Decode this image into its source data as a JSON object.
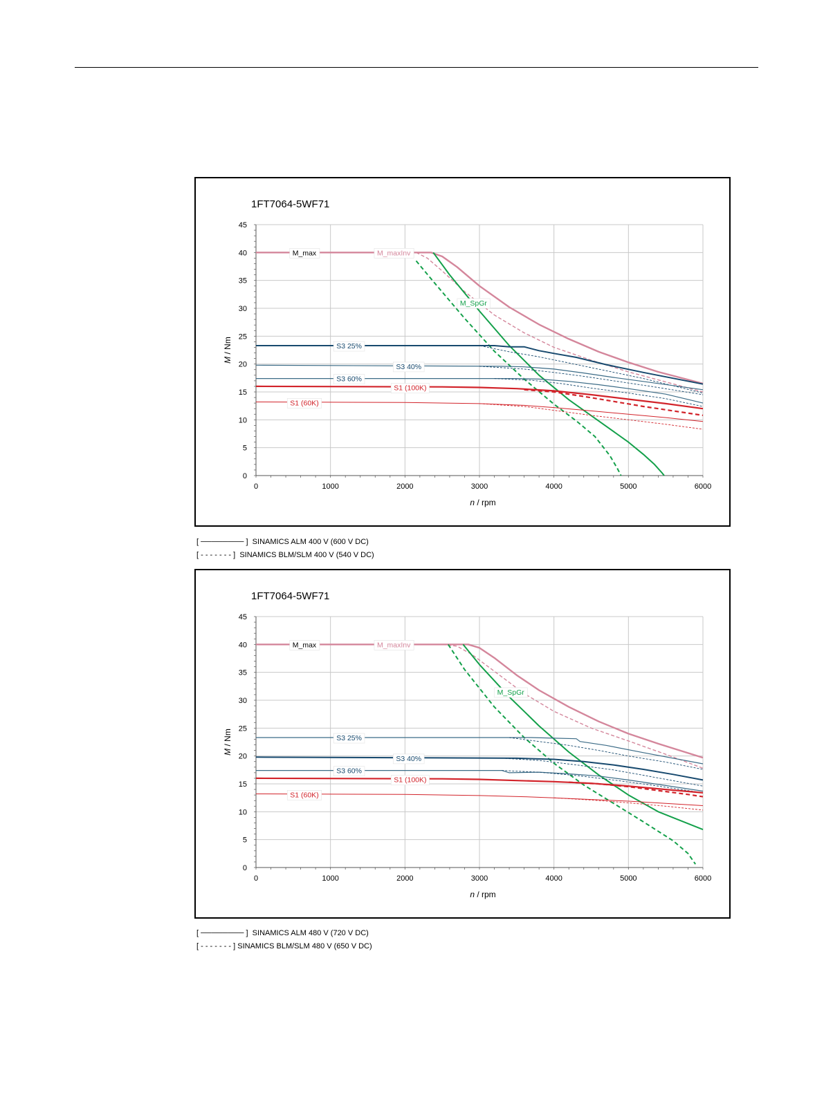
{
  "chart_data": [
    {
      "type": "line",
      "title": "1FT7064-5WF71",
      "xlabel_var": "n",
      "xlabel_unit": " / rpm",
      "ylabel_var": "M",
      "ylabel_unit": " / Nm",
      "xlim": [
        0,
        6000
      ],
      "ylim": [
        0,
        45
      ],
      "xticks": [
        "0",
        "1000",
        "2000",
        "3000",
        "4000",
        "5000",
        "6000"
      ],
      "yticks": [
        "0",
        "5",
        "10",
        "15",
        "20",
        "25",
        "30",
        "35",
        "40",
        "45"
      ],
      "grid": true,
      "colors": {
        "max": "#d4869b",
        "spgr": "#13a04a",
        "s3": "#17496e",
        "s3light": "#3b6b86",
        "s1": "#d2232a"
      },
      "labels": [
        {
          "text": "M_max",
          "x": 650,
          "y": 40,
          "color": "#000000"
        },
        {
          "text": "M_maxInv",
          "x": 1850,
          "y": 40,
          "color": "#d4869b"
        },
        {
          "text": "M_SpGr",
          "x": 2920,
          "y": 31,
          "color": "#13a04a"
        },
        {
          "text": "S3 25%",
          "x": 1250,
          "y": 23.3,
          "color": "#17496e"
        },
        {
          "text": "S3 40%",
          "x": 2050,
          "y": 19.6,
          "color": "#17496e"
        },
        {
          "text": "S3 60%",
          "x": 1250,
          "y": 17.4,
          "color": "#17496e"
        },
        {
          "text": "S1 (100K)",
          "x": 2070,
          "y": 15.8,
          "color": "#d2232a"
        },
        {
          "text": "S1 (60K)",
          "x": 650,
          "y": 13.1,
          "color": "#d2232a"
        }
      ],
      "series": [
        {
          "name": "M_max",
          "style": "max",
          "x": [
            0,
            2200,
            2350,
            2500,
            2700,
            3000,
            3400,
            3800,
            4200,
            4600,
            5000,
            5400,
            6000
          ],
          "y": [
            40,
            40,
            40,
            39.3,
            37.4,
            34,
            30.2,
            27.1,
            24.5,
            22.2,
            20.3,
            18.6,
            16.5
          ]
        },
        {
          "name": "M_max BLM",
          "style": "max-dash",
          "x": [
            2150,
            2300,
            2500,
            2800,
            3200,
            3600,
            4000,
            4500,
            5000,
            5500,
            6000
          ],
          "y": [
            40,
            39,
            36.7,
            33,
            28.8,
            25.6,
            23,
            20.7,
            18.6,
            16.8,
            15
          ]
        },
        {
          "name": "M_SpGr",
          "style": "spgr",
          "x": [
            2380,
            2600,
            3000,
            3400,
            3800,
            4200,
            4600,
            5000,
            5200,
            5350,
            5450,
            5480
          ],
          "y": [
            40,
            36,
            29.5,
            23.3,
            18,
            13.6,
            9.8,
            6,
            3.8,
            2,
            0.5,
            0
          ]
        },
        {
          "name": "M_SpGr BLM",
          "style": "spgr-dash",
          "x": [
            2150,
            2400,
            2800,
            3200,
            3600,
            4000,
            4300,
            4550,
            4750,
            4850,
            4900
          ],
          "y": [
            38.5,
            34.5,
            28.2,
            22.3,
            17.3,
            12.8,
            9.8,
            7,
            3.6,
            1.3,
            0
          ]
        },
        {
          "name": "S3 25%",
          "style": "s3-thick",
          "x": [
            0,
            3200,
            3400,
            3600,
            3800,
            4000,
            4300,
            4700,
            5200,
            6000
          ],
          "y": [
            23.3,
            23.3,
            23.1,
            23.1,
            22.4,
            21.9,
            21.2,
            19.9,
            18.5,
            16.4
          ]
        },
        {
          "name": "S3 25% BLM",
          "style": "s3-dash",
          "x": [
            2500,
            3000,
            3400,
            3800,
            4200,
            4700,
            5200,
            6000
          ],
          "y": [
            23.3,
            23.3,
            22.2,
            21.3,
            20.2,
            18.8,
            17.4,
            14.8
          ]
        },
        {
          "name": "S3 40%",
          "style": "s3",
          "x": [
            0,
            3300,
            3600,
            4000,
            4400,
            4800,
            5300,
            6000
          ],
          "y": [
            19.8,
            19.6,
            19.5,
            19.1,
            18.4,
            17.6,
            16.7,
            15.4
          ]
        },
        {
          "name": "S3 40% BLM",
          "style": "s3-dash",
          "x": [
            3000,
            3600,
            4000,
            4400,
            4800,
            5300,
            6000
          ],
          "y": [
            19.6,
            19.1,
            18.5,
            17.8,
            17,
            16,
            14.5
          ]
        },
        {
          "name": "S3 60%",
          "style": "s3",
          "x": [
            0,
            3500,
            3800,
            4200,
            4600,
            5000,
            5500,
            6000
          ],
          "y": [
            17.4,
            17.4,
            17.3,
            16.9,
            16.3,
            15.6,
            14.6,
            13
          ]
        },
        {
          "name": "S3 60% BLM",
          "style": "s3-dash",
          "x": [
            3200,
            3700,
            4100,
            4500,
            5000,
            5500,
            6000
          ],
          "y": [
            17.4,
            17.1,
            16.5,
            15.7,
            14.8,
            13.8,
            12.4
          ]
        },
        {
          "name": "S1 (100K)",
          "style": "s1-thick",
          "x": [
            0,
            2500,
            3000,
            3500,
            4000,
            4500,
            5000,
            5500,
            6000
          ],
          "y": [
            16,
            15.9,
            15.8,
            15.6,
            15.2,
            14.5,
            13.7,
            12.9,
            12
          ]
        },
        {
          "name": "S1 (100K) BLM",
          "style": "s1-dash-thick",
          "x": [
            3600,
            4000,
            4400,
            4800,
            5200,
            5600,
            6000
          ],
          "y": [
            15.4,
            15,
            14.2,
            13.3,
            12.4,
            11.6,
            10.8
          ]
        },
        {
          "name": "S1 (60K)",
          "style": "s1",
          "x": [
            0,
            2000,
            3000,
            3600,
            4000,
            4500,
            5000,
            5500,
            6000
          ],
          "y": [
            13.2,
            13.1,
            12.9,
            12.6,
            12.2,
            11.6,
            11,
            10.4,
            9.7
          ]
        },
        {
          "name": "S1 (60K) BLM",
          "style": "s1-dash",
          "x": [
            3000,
            3600,
            4000,
            4500,
            5000,
            5500,
            6000
          ],
          "y": [
            12.9,
            12.4,
            11.7,
            10.8,
            10,
            9.2,
            8.3
          ]
        }
      ]
    },
    {
      "type": "line",
      "title": "1FT7064-5WF71",
      "xlabel_var": "n",
      "xlabel_unit": " / rpm",
      "ylabel_var": "M",
      "ylabel_unit": " / Nm",
      "xlim": [
        0,
        6000
      ],
      "ylim": [
        0,
        45
      ],
      "xticks": [
        "0",
        "1000",
        "2000",
        "3000",
        "4000",
        "5000",
        "6000"
      ],
      "yticks": [
        "0",
        "5",
        "10",
        "15",
        "20",
        "25",
        "30",
        "35",
        "40",
        "45"
      ],
      "grid": true,
      "colors": {
        "max": "#d4869b",
        "spgr": "#13a04a",
        "s3": "#17496e",
        "s3light": "#3b6b86",
        "s1": "#d2232a"
      },
      "labels": [
        {
          "text": "M_max",
          "x": 650,
          "y": 40,
          "color": "#000000"
        },
        {
          "text": "M_maxInv",
          "x": 1850,
          "y": 40,
          "color": "#d4869b"
        },
        {
          "text": "M_SpGr",
          "x": 3420,
          "y": 31.5,
          "color": "#13a04a"
        },
        {
          "text": "S3 25%",
          "x": 1250,
          "y": 23.3,
          "color": "#17496e"
        },
        {
          "text": "S3 40%",
          "x": 2050,
          "y": 19.6,
          "color": "#17496e"
        },
        {
          "text": "S3 60%",
          "x": 1250,
          "y": 17.4,
          "color": "#17496e"
        },
        {
          "text": "S1 (100K)",
          "x": 2070,
          "y": 15.8,
          "color": "#d2232a"
        },
        {
          "text": "S1 (60K)",
          "x": 650,
          "y": 13.1,
          "color": "#d2232a"
        }
      ],
      "series": [
        {
          "name": "M_max",
          "style": "max",
          "x": [
            0,
            2700,
            2850,
            3000,
            3200,
            3500,
            3800,
            4200,
            4600,
            5000,
            5400,
            6000
          ],
          "y": [
            40,
            40,
            40,
            39.4,
            37.6,
            34.5,
            31.8,
            28.8,
            26.2,
            24,
            22.2,
            19.7
          ]
        },
        {
          "name": "M_max BLM",
          "style": "max-dash",
          "x": [
            2500,
            2700,
            2900,
            3200,
            3600,
            4000,
            4500,
            5000,
            5500,
            6000
          ],
          "y": [
            40,
            39.7,
            38.2,
            35.2,
            31.2,
            28,
            25,
            22.7,
            20.3,
            17.8
          ]
        },
        {
          "name": "M_SpGr",
          "style": "spgr",
          "x": [
            2780,
            3000,
            3400,
            3800,
            4200,
            4600,
            5000,
            5400,
            5700,
            6000
          ],
          "y": [
            40,
            36.4,
            30.6,
            25.4,
            20.7,
            16.6,
            13,
            10,
            8.4,
            6.8
          ]
        },
        {
          "name": "M_SpGr BLM",
          "style": "spgr-dash",
          "x": [
            2580,
            2800,
            3200,
            3600,
            4000,
            4400,
            4800,
            5200,
            5600,
            5800,
            5900
          ],
          "y": [
            40,
            35.5,
            28.8,
            23.3,
            18.7,
            14.8,
            11.5,
            8.2,
            4.8,
            2.5,
            0.6
          ]
        },
        {
          "name": "S3 25%",
          "style": "s3",
          "x": [
            0,
            3700,
            4000,
            4300,
            4350,
            4700,
            5200,
            6000
          ],
          "y": [
            23.3,
            23.3,
            23.2,
            23.1,
            22.6,
            21.9,
            20.6,
            18.6
          ]
        },
        {
          "name": "S3 25% BLM",
          "style": "s3-dash",
          "x": [
            3400,
            3800,
            4200,
            4600,
            5000,
            5500,
            6000
          ],
          "y": [
            23.3,
            22.6,
            21.9,
            21,
            20,
            18.9,
            17.6
          ]
        },
        {
          "name": "S3 40%",
          "style": "s3-thick",
          "x": [
            0,
            3500,
            4000,
            4400,
            4800,
            5200,
            5600,
            6000
          ],
          "y": [
            19.8,
            19.6,
            19.4,
            19,
            18.4,
            17.6,
            16.7,
            15.7
          ]
        },
        {
          "name": "S3 40% BLM",
          "style": "s3-dash",
          "x": [
            3300,
            3800,
            4300,
            4800,
            5300,
            6000
          ],
          "y": [
            19.6,
            19.2,
            18.4,
            17.5,
            16.3,
            14.6
          ]
        },
        {
          "name": "S3 60%",
          "style": "s3",
          "x": [
            0,
            3300,
            3400,
            3800,
            4200,
            4600,
            5000,
            5500,
            6000
          ],
          "y": [
            17.4,
            17.4,
            17,
            17.1,
            16.8,
            16.4,
            15.7,
            14.7,
            13.7
          ]
        },
        {
          "name": "S3 60% BLM",
          "style": "s3-dash",
          "x": [
            3300,
            3800,
            4300,
            4800,
            5300,
            6000
          ],
          "y": [
            17.4,
            17.1,
            16.5,
            15.7,
            14.8,
            13.4
          ]
        },
        {
          "name": "S1 (100K)",
          "style": "s1-thick",
          "x": [
            0,
            2500,
            3000,
            3500,
            4000,
            4500,
            5000,
            5500,
            6000
          ],
          "y": [
            16,
            15.9,
            15.8,
            15.6,
            15.4,
            15.1,
            14.6,
            14,
            13.4
          ]
        },
        {
          "name": "S1 (100K) BLM",
          "style": "s1-dash-thick",
          "x": [
            4200,
            4600,
            5000,
            5400,
            5800,
            6000
          ],
          "y": [
            15.3,
            15,
            14.5,
            13.8,
            13.1,
            12.7
          ]
        },
        {
          "name": "S1 (60K)",
          "style": "s1",
          "x": [
            0,
            2000,
            3000,
            3600,
            4000,
            4500,
            5000,
            5500,
            6000
          ],
          "y": [
            13.2,
            13.1,
            12.9,
            12.7,
            12.5,
            12.2,
            11.9,
            11.5,
            11.1
          ]
        },
        {
          "name": "S1 (60K) BLM",
          "style": "s1-dash",
          "x": [
            4000,
            4500,
            5000,
            5500,
            6000
          ],
          "y": [
            12.5,
            12.1,
            11.6,
            11,
            10.3
          ]
        }
      ]
    }
  ],
  "captions": [
    {
      "solid": "[ ──────── ]  SINAMICS ALM 400 V (600 V DC)",
      "dashed": "[ - - - - - - - ]  SINAMICS BLM/SLM 400 V (540 V DC)"
    },
    {
      "solid": "[ ──────── ]  SINAMICS ALM 480 V (720 V DC)",
      "dashed": "[ - - - - - - - ] SINAMICS BLM/SLM 480 V (650 V DC)"
    }
  ]
}
